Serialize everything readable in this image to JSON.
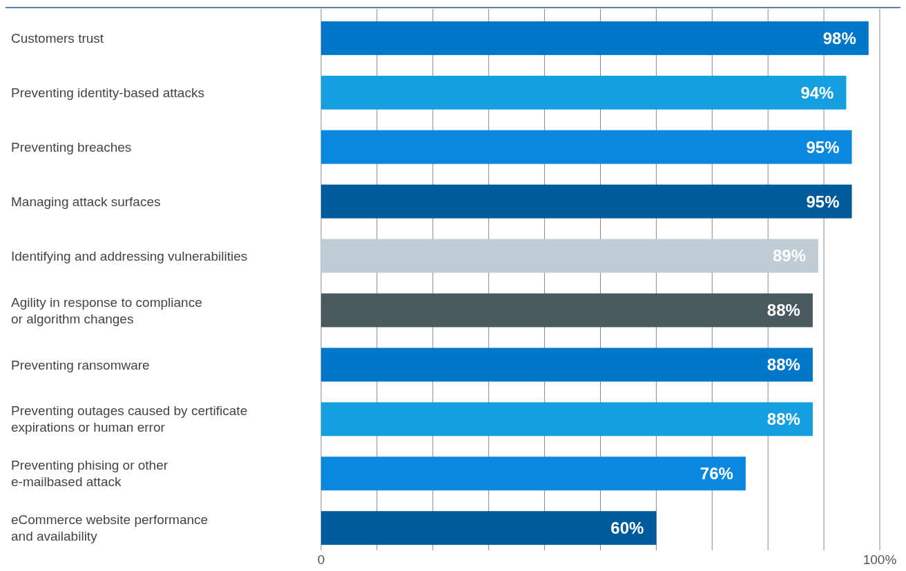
{
  "chart_data": {
    "type": "bar",
    "orientation": "horizontal",
    "categories": [
      "Customers trust",
      "Preventing identity-based attacks",
      "Preventing breaches",
      "Managing attack surfaces",
      "Identifying and addressing vulnerabilities",
      "Agility in response to compliance\nor algorithm changes",
      "Preventing ransomware",
      "Preventing outages caused by certificate\nexpirations or human error",
      "Preventing phising or other\ne-mailbased attack",
      "eCommerce website performance\nand availability"
    ],
    "values": [
      98,
      94,
      95,
      95,
      89,
      88,
      88,
      88,
      76,
      60
    ],
    "value_labels": [
      "98%",
      "94%",
      "95%",
      "95%",
      "89%",
      "88%",
      "88%",
      "88%",
      "76%",
      "60%"
    ],
    "colors": [
      "#0077c8",
      "#139fe0",
      "#0a88e0",
      "#005a9c",
      "#bfccd5",
      "#4a5860",
      "#0077c8",
      "#139fe0",
      "#0a88e0",
      "#005a9c"
    ],
    "xlim": [
      0,
      100
    ],
    "xticks": [
      {
        "value": 0,
        "label": "0"
      },
      {
        "value": 10,
        "label": null
      },
      {
        "value": 20,
        "label": null
      },
      {
        "value": 30,
        "label": null
      },
      {
        "value": 40,
        "label": null
      },
      {
        "value": 50,
        "label": null
      },
      {
        "value": 60,
        "label": null
      },
      {
        "value": 70,
        "label": null
      },
      {
        "value": 80,
        "label": null
      },
      {
        "value": 90,
        "label": null
      },
      {
        "value": 100,
        "label": "100%"
      }
    ],
    "grid": "x"
  }
}
